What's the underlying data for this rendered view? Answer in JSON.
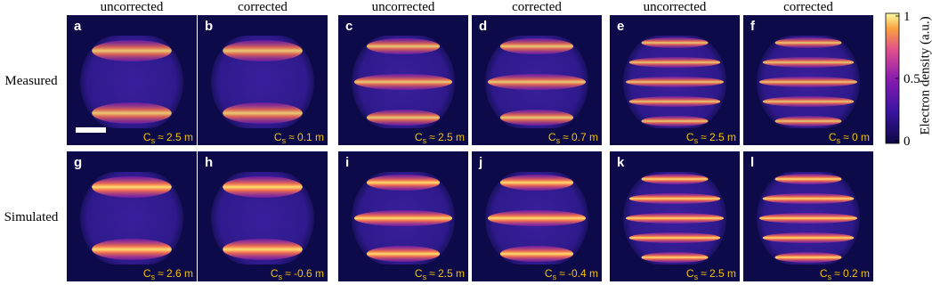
{
  "column_headers": [
    "uncorrected",
    "corrected",
    "uncorrected",
    "corrected",
    "uncorrected",
    "corrected"
  ],
  "row_labels": [
    "Measured",
    "Simulated"
  ],
  "panels": [
    {
      "letter": "a",
      "annotation": {
        "symbol": "C",
        "subscript": "s",
        "value": "≈ 2.5 m"
      }
    },
    {
      "letter": "b",
      "annotation": {
        "symbol": "C",
        "subscript": "s",
        "value": "≈ 0.1 m"
      }
    },
    {
      "letter": "c",
      "annotation": {
        "symbol": "C",
        "subscript": "s",
        "value": "≈ 2.5 m"
      }
    },
    {
      "letter": "d",
      "annotation": {
        "symbol": "C",
        "subscript": "s",
        "value": "≈ 0.7 m"
      }
    },
    {
      "letter": "e",
      "annotation": {
        "symbol": "C",
        "subscript": "s",
        "value": "≈ 2.5 m"
      }
    },
    {
      "letter": "f",
      "annotation": {
        "symbol": "C",
        "subscript": "s",
        "value": "≈ 0 m"
      }
    },
    {
      "letter": "g",
      "annotation": {
        "symbol": "C",
        "subscript": "s",
        "value": "≈ 2.6 m"
      }
    },
    {
      "letter": "h",
      "annotation": {
        "symbol": "C",
        "subscript": "s",
        "value": "≈ -0.6 m"
      }
    },
    {
      "letter": "i",
      "annotation": {
        "symbol": "C",
        "subscript": "s",
        "value": "≈ 2.5 m"
      }
    },
    {
      "letter": "j",
      "annotation": {
        "symbol": "C",
        "subscript": "s",
        "value": "≈ -0.4 m"
      }
    },
    {
      "letter": "k",
      "annotation": {
        "symbol": "C",
        "subscript": "s",
        "value": "≈ 2.5 m"
      }
    },
    {
      "letter": "l",
      "annotation": {
        "symbol": "C",
        "subscript": "s",
        "value": "≈ 0.2 m"
      }
    }
  ],
  "colorbar": {
    "label": "Electron density (a.u.)",
    "ticks": [
      "1",
      "0.5",
      "0"
    ]
  }
}
